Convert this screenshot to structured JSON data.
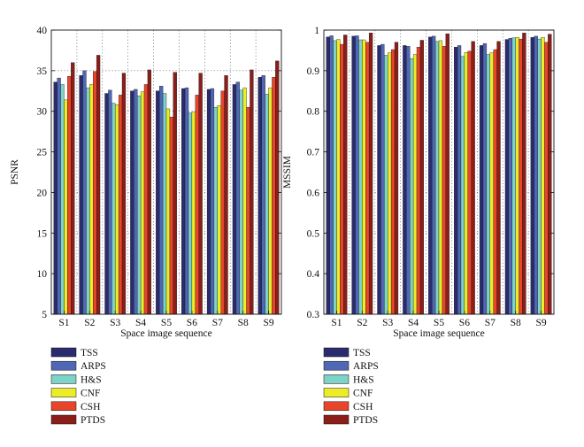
{
  "colors": {
    "TSS": "#2b2c6e",
    "ARPS": "#5068b4",
    "H&S": "#7ed2c8",
    "CNF": "#ecec28",
    "CSH": "#e8462a",
    "PTDS": "#8c1e1a"
  },
  "chart_data": [
    {
      "type": "bar",
      "title": "",
      "xlabel": "Space image sequence",
      "ylabel": "PSNR",
      "ylim": [
        5,
        40
      ],
      "yticks": [
        5,
        10,
        15,
        20,
        25,
        30,
        35,
        40
      ],
      "ytick_labels": [
        "5",
        "10",
        "15",
        "20",
        "25",
        "30",
        "35",
        "40"
      ],
      "grid": "dotted",
      "categories": [
        "S1",
        "S2",
        "S3",
        "S4",
        "S5",
        "S6",
        "S7",
        "S8",
        "S9"
      ],
      "series": [
        {
          "name": "TSS",
          "values": [
            33.6,
            34.4,
            32.2,
            32.5,
            32.5,
            32.8,
            32.7,
            33.3,
            34.2
          ]
        },
        {
          "name": "ARPS",
          "values": [
            34.1,
            35.0,
            32.6,
            32.7,
            33.1,
            32.9,
            32.8,
            33.6,
            34.4
          ]
        },
        {
          "name": "H&S",
          "values": [
            33.3,
            32.9,
            31.0,
            31.9,
            32.2,
            29.8,
            30.5,
            32.6,
            32.1
          ]
        },
        {
          "name": "CNF",
          "values": [
            31.4,
            33.3,
            30.8,
            32.4,
            30.3,
            29.9,
            30.7,
            32.9,
            32.9
          ]
        },
        {
          "name": "CSH",
          "values": [
            34.3,
            34.9,
            32.0,
            33.3,
            29.3,
            32.0,
            32.5,
            30.5,
            34.2
          ]
        },
        {
          "name": "PTDS",
          "values": [
            36.0,
            36.9,
            34.7,
            35.1,
            34.8,
            34.7,
            34.4,
            35.1,
            36.2
          ]
        }
      ],
      "legend": "below",
      "legend_entries": [
        "TSS",
        "ARPS",
        "H&S",
        "CNF",
        "CSH",
        "PTDS"
      ]
    },
    {
      "type": "bar",
      "title": "",
      "xlabel": "Space image sequence",
      "ylabel": "MSSIM",
      "ylim": [
        0.3,
        1.0
      ],
      "yticks": [
        0.3,
        0.4,
        0.5,
        0.6,
        0.7,
        0.8,
        0.9,
        1.0
      ],
      "ytick_labels": [
        "0.3",
        "0.4",
        "0.5",
        "0.6",
        "0.7",
        "0.8",
        "0.9",
        "1"
      ],
      "grid": "dotted",
      "categories": [
        "S1",
        "S2",
        "S3",
        "S4",
        "S5",
        "S6",
        "S7",
        "S8",
        "S9"
      ],
      "series": [
        {
          "name": "TSS",
          "values": [
            0.983,
            0.985,
            0.962,
            0.962,
            0.983,
            0.958,
            0.962,
            0.977,
            0.982
          ]
        },
        {
          "name": "ARPS",
          "values": [
            0.986,
            0.986,
            0.965,
            0.96,
            0.985,
            0.962,
            0.967,
            0.98,
            0.985
          ]
        },
        {
          "name": "H&S",
          "values": [
            0.974,
            0.976,
            0.938,
            0.93,
            0.972,
            0.935,
            0.94,
            0.981,
            0.978
          ]
        },
        {
          "name": "CNF",
          "values": [
            0.977,
            0.976,
            0.944,
            0.94,
            0.974,
            0.945,
            0.944,
            0.982,
            0.982
          ]
        },
        {
          "name": "CSH",
          "values": [
            0.965,
            0.97,
            0.952,
            0.958,
            0.96,
            0.948,
            0.952,
            0.978,
            0.97
          ]
        },
        {
          "name": "PTDS",
          "values": [
            0.988,
            0.993,
            0.97,
            0.975,
            0.991,
            0.972,
            0.972,
            0.993,
            0.99
          ]
        }
      ],
      "legend": "below",
      "legend_entries": [
        "TSS",
        "ARPS",
        "H&S",
        "CNF",
        "CSH",
        "PTDS"
      ]
    }
  ]
}
